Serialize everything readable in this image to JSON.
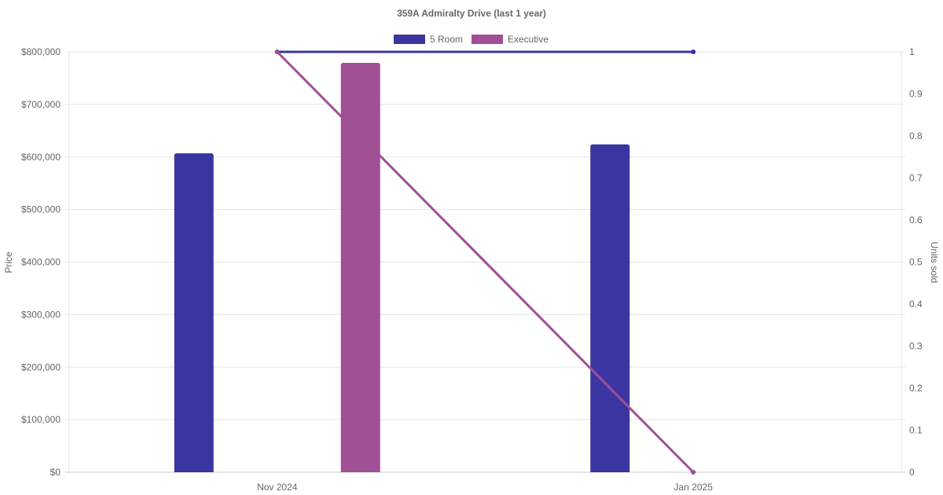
{
  "chart_data": {
    "type": "bar+line",
    "title": "359A Admiralty Drive (last 1 year)",
    "categories": [
      "Nov 2024",
      "Jan 2025"
    ],
    "ylabel": "Price",
    "y2label": "Units sold",
    "ylim": [
      0,
      800000
    ],
    "y2lim": [
      0,
      1
    ],
    "yticks": [
      "$0",
      "$100,000",
      "$200,000",
      "$300,000",
      "$400,000",
      "$500,000",
      "$600,000",
      "$700,000",
      "$800,000"
    ],
    "y2ticks": [
      "0",
      "0.1",
      "0.2",
      "0.3",
      "0.4",
      "0.5",
      "0.6",
      "0.7",
      "0.8",
      "0.9",
      "1"
    ],
    "grid": true,
    "legend_position": "top",
    "series": [
      {
        "name": "5 Room",
        "color": "#3a35a0",
        "price": [
          607000,
          624000
        ],
        "units": [
          1,
          1
        ]
      },
      {
        "name": "Executive",
        "color": "#a05094",
        "price": [
          779000,
          null
        ],
        "units": [
          1,
          0
        ]
      }
    ]
  }
}
